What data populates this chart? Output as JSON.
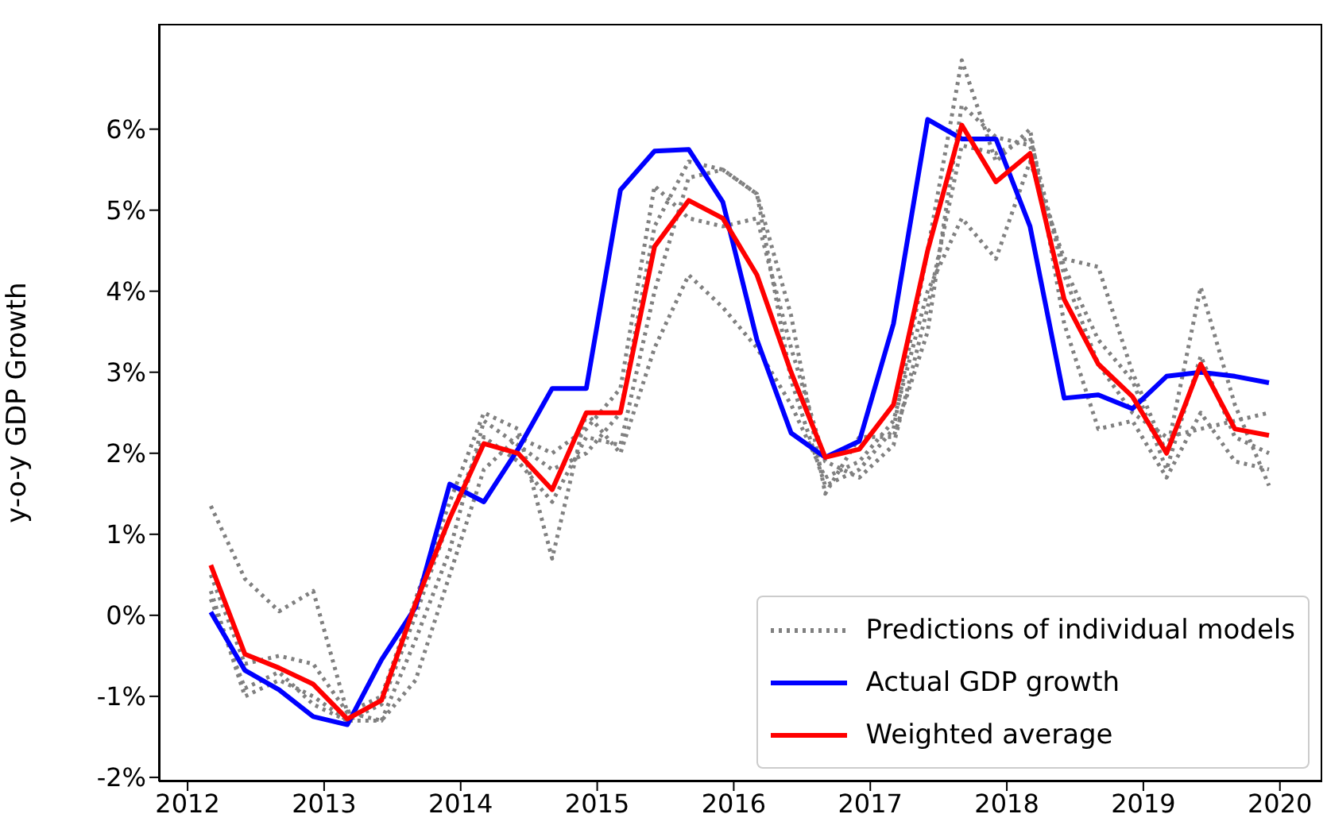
{
  "chart_data": {
    "type": "line",
    "ylabel": "y-o-y GDP Growth",
    "x": [
      2012.17,
      2012.42,
      2012.67,
      2012.92,
      2013.17,
      2013.42,
      2013.67,
      2013.92,
      2014.17,
      2014.42,
      2014.67,
      2014.92,
      2015.17,
      2015.42,
      2015.67,
      2015.92,
      2016.17,
      2016.42,
      2016.67,
      2016.92,
      2017.17,
      2017.42,
      2017.67,
      2017.92,
      2018.17,
      2018.42,
      2018.67,
      2018.92,
      2019.17,
      2019.42,
      2019.67,
      2019.92
    ],
    "series": [
      {
        "name": "Predictions of individual models",
        "color": "#808080",
        "line_style": "dotted",
        "values": [
          1.35,
          0.45,
          0.05,
          0.3,
          -1.2,
          -1.0,
          0.2,
          1.4,
          2.5,
          2.3,
          0.7,
          2.5,
          2.0,
          3.3,
          4.2,
          3.8,
          3.3,
          2.6,
          1.7,
          1.9,
          2.4,
          4.0,
          4.9,
          4.4,
          5.6,
          4.4,
          4.3,
          3.0,
          2.0,
          4.05,
          2.6,
          1.6
        ]
      },
      {
        "color": "#808080",
        "line_style": "dotted",
        "values": [
          0.3,
          -1.0,
          -0.8,
          -1.0,
          -1.3,
          -1.3,
          -0.3,
          0.8,
          2.4,
          2.1,
          1.8,
          2.0,
          2.5,
          4.8,
          5.6,
          5.5,
          5.2,
          2.9,
          1.6,
          1.8,
          2.3,
          4.5,
          6.85,
          5.6,
          6.0,
          3.6,
          2.3,
          2.4,
          1.7,
          2.5,
          1.9,
          1.8
        ]
      },
      {
        "color": "#808080",
        "line_style": "dotted",
        "values": [
          0.5,
          -0.6,
          -0.5,
          -0.6,
          -1.2,
          -1.3,
          -0.8,
          0.5,
          1.8,
          2.2,
          2.0,
          2.3,
          2.8,
          5.3,
          4.9,
          4.8,
          4.9,
          3.3,
          1.9,
          1.7,
          2.1,
          3.8,
          5.8,
          5.7,
          5.9,
          4.2,
          3.1,
          2.5,
          2.2,
          2.3,
          2.4,
          2.5
        ]
      },
      {
        "color": "#808080",
        "line_style": "dotted",
        "values": [
          0.2,
          -0.9,
          -0.7,
          -1.1,
          -1.3,
          -1.1,
          0.0,
          1.2,
          2.2,
          1.9,
          1.4,
          2.2,
          2.1,
          4.0,
          5.4,
          5.5,
          5.2,
          3.7,
          1.5,
          2.2,
          2.2,
          3.5,
          6.3,
          5.9,
          5.8,
          4.3,
          3.4,
          2.9,
          1.8,
          3.2,
          2.2,
          2.0
        ]
      },
      {
        "name": "Actual GDP growth",
        "color": "#0000ff",
        "line_style": "solid",
        "values": [
          0.04,
          -0.68,
          -0.92,
          -1.25,
          -1.35,
          -0.55,
          0.1,
          1.62,
          1.4,
          2.05,
          2.8,
          2.8,
          5.25,
          5.73,
          5.75,
          5.1,
          3.4,
          2.25,
          1.95,
          2.15,
          3.6,
          6.12,
          5.88,
          5.88,
          4.8,
          2.68,
          2.72,
          2.55,
          2.95,
          3.0,
          2.95,
          2.87
        ]
      },
      {
        "name": "Weighted average",
        "color": "#ff0000",
        "line_style": "solid",
        "values": [
          0.62,
          -0.48,
          -0.65,
          -0.85,
          -1.28,
          -1.05,
          0.15,
          1.2,
          2.12,
          2.0,
          1.55,
          2.5,
          2.5,
          4.55,
          5.12,
          4.9,
          4.2,
          3.0,
          1.95,
          2.05,
          2.6,
          4.5,
          6.05,
          5.35,
          5.7,
          3.9,
          3.1,
          2.7,
          2.0,
          3.1,
          2.3,
          2.22
        ]
      }
    ],
    "xlim": [
      2011.79,
      2020.31
    ],
    "xticks": [
      2012,
      2013,
      2014,
      2015,
      2016,
      2017,
      2018,
      2019,
      2020
    ],
    "ylim": [
      -2.05,
      7.3
    ],
    "yticks": [
      {
        "value": -2,
        "label": "-2%"
      },
      {
        "value": -1,
        "label": "-1%"
      },
      {
        "value": 0,
        "label": "0%"
      },
      {
        "value": 1,
        "label": "1%"
      },
      {
        "value": 2,
        "label": "2%"
      },
      {
        "value": 3,
        "label": "3%"
      },
      {
        "value": 4,
        "label": "4%"
      },
      {
        "value": 5,
        "label": "5%"
      },
      {
        "value": 6,
        "label": "6%"
      }
    ],
    "grid": false,
    "legend": "bottom right",
    "marker": "none"
  }
}
